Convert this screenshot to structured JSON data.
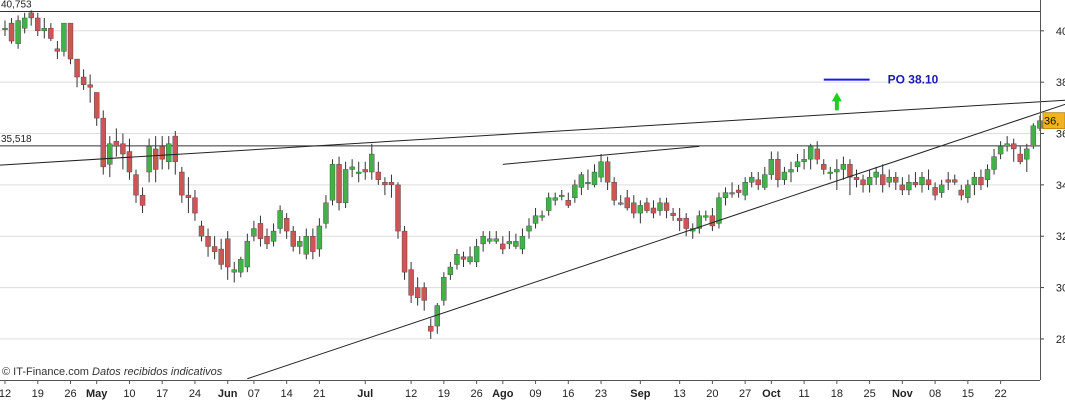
{
  "chart_data": {
    "type": "candlestick",
    "ylim": [
      26.4,
      41.2
    ],
    "y_ticks": [
      28,
      30,
      32,
      34,
      36,
      38,
      40
    ],
    "y_tick_labels": [
      "28",
      "30",
      "32",
      "34",
      "36",
      "38",
      "40"
    ],
    "x_labels": [
      {
        "label": "12",
        "bold": false,
        "i": 0
      },
      {
        "label": "19",
        "bold": false,
        "i": 5
      },
      {
        "label": "26",
        "bold": false,
        "i": 10
      },
      {
        "label": "May",
        "bold": true,
        "i": 14
      },
      {
        "label": "10",
        "bold": false,
        "i": 19
      },
      {
        "label": "17",
        "bold": false,
        "i": 24
      },
      {
        "label": "24",
        "bold": false,
        "i": 29
      },
      {
        "label": "Jun",
        "bold": true,
        "i": 34
      },
      {
        "label": "07",
        "bold": false,
        "i": 38
      },
      {
        "label": "14",
        "bold": false,
        "i": 43
      },
      {
        "label": "21",
        "bold": false,
        "i": 48
      },
      {
        "label": "Jul",
        "bold": true,
        "i": 55
      },
      {
        "label": "12",
        "bold": false,
        "i": 62
      },
      {
        "label": "19",
        "bold": false,
        "i": 67
      },
      {
        "label": "26",
        "bold": false,
        "i": 72
      },
      {
        "label": "Ago",
        "bold": true,
        "i": 76
      },
      {
        "label": "09",
        "bold": false,
        "i": 81
      },
      {
        "label": "16",
        "bold": false,
        "i": 86
      },
      {
        "label": "23",
        "bold": false,
        "i": 91
      },
      {
        "label": "Sep",
        "bold": true,
        "i": 97
      },
      {
        "label": "13",
        "bold": false,
        "i": 103
      },
      {
        "label": "20",
        "bold": false,
        "i": 108
      },
      {
        "label": "27",
        "bold": false,
        "i": 113
      },
      {
        "label": "Oct",
        "bold": true,
        "i": 117
      },
      {
        "label": "11",
        "bold": false,
        "i": 122
      },
      {
        "label": "18",
        "bold": false,
        "i": 127
      },
      {
        "label": "25",
        "bold": false,
        "i": 132
      },
      {
        "label": "Nov",
        "bold": true,
        "i": 137
      },
      {
        "label": "08",
        "bold": false,
        "i": 142
      },
      {
        "label": "15",
        "bold": false,
        "i": 147
      },
      {
        "label": "22",
        "bold": false,
        "i": 152
      }
    ],
    "horizontal_levels": [
      {
        "value": 40.753,
        "label": "40,753"
      },
      {
        "value": 35.518,
        "label": "35,518"
      }
    ],
    "last_price_label": "36,",
    "last_price": 36.5,
    "target": {
      "label": "PO 38.10",
      "value": 38.1,
      "from_i": 125,
      "to_i": 132
    },
    "trendlines": [
      {
        "name": "upper-trendline",
        "from": [
          -2,
          34.75
        ],
        "to": [
          162,
          37.3
        ]
      },
      {
        "name": "lower-trendline",
        "from": [
          37,
          26.45
        ],
        "to": [
          162,
          37.15
        ]
      },
      {
        "name": "short-resistance-line",
        "from": [
          76,
          34.8
        ],
        "to": [
          106,
          35.5
        ]
      }
    ],
    "arrow": {
      "direction": "up",
      "i": 127,
      "base": 36.9,
      "top": 37.6
    },
    "candles": [
      [
        0,
        40.1,
        40.1,
        40.4,
        39.8
      ],
      [
        1,
        40.3,
        39.6,
        40.5,
        39.5
      ],
      [
        2,
        39.5,
        40.4,
        40.6,
        39.3
      ],
      [
        3,
        40.1,
        40.5,
        40.7,
        39.9
      ],
      [
        4,
        40.7,
        40.5,
        40.8,
        40.2
      ],
      [
        5,
        40.5,
        40.0,
        40.7,
        39.8
      ],
      [
        6,
        40.0,
        40.1,
        40.5,
        39.7
      ],
      [
        7,
        40.1,
        39.7,
        40.3,
        39.6
      ],
      [
        8,
        39.3,
        39.2,
        39.6,
        38.9
      ],
      [
        9,
        39.2,
        40.3,
        40.3,
        39.0
      ],
      [
        10,
        40.3,
        38.9,
        40.3,
        38.7
      ],
      [
        11,
        38.9,
        38.2,
        38.9,
        37.8
      ],
      [
        12,
        38.2,
        37.9,
        38.5,
        37.7
      ],
      [
        13,
        37.9,
        37.8,
        38.3,
        37.2
      ],
      [
        14,
        37.6,
        36.6,
        37.6,
        36.3
      ],
      [
        15,
        36.6,
        34.7,
        36.9,
        34.4
      ],
      [
        16,
        34.8,
        35.6,
        35.9,
        34.3
      ],
      [
        17,
        35.7,
        35.5,
        36.2,
        35.1
      ],
      [
        18,
        35.6,
        35.2,
        36.0,
        34.6
      ],
      [
        19,
        35.3,
        34.5,
        35.8,
        34.2
      ],
      [
        20,
        34.4,
        33.6,
        34.6,
        33.3
      ],
      [
        21,
        33.6,
        33.2,
        33.9,
        32.9
      ],
      [
        22,
        34.5,
        35.5,
        35.8,
        34.1
      ],
      [
        23,
        35.4,
        34.6,
        35.9,
        34.1
      ],
      [
        24,
        35.5,
        35.0,
        35.9,
        34.6
      ],
      [
        25,
        34.9,
        35.6,
        35.9,
        34.6
      ],
      [
        26,
        35.9,
        34.9,
        36.1,
        34.4
      ],
      [
        27,
        34.5,
        33.6,
        34.7,
        33.3
      ],
      [
        28,
        33.6,
        33.5,
        34.3,
        32.9
      ],
      [
        29,
        33.5,
        32.9,
        33.8,
        32.6
      ],
      [
        30,
        32.4,
        32.0,
        32.6,
        31.8
      ],
      [
        31,
        32.0,
        31.6,
        32.3,
        31.2
      ],
      [
        32,
        31.6,
        31.4,
        32.0,
        31.1
      ],
      [
        33,
        31.5,
        30.9,
        31.9,
        30.7
      ],
      [
        34,
        31.9,
        30.8,
        32.2,
        30.3
      ],
      [
        35,
        30.6,
        30.7,
        31.0,
        30.2
      ],
      [
        36,
        30.6,
        31.1,
        31.2,
        30.4
      ],
      [
        37,
        30.8,
        31.8,
        32.1,
        30.6
      ],
      [
        38,
        32.0,
        32.3,
        32.6,
        31.8
      ],
      [
        39,
        32.5,
        31.9,
        32.8,
        31.6
      ],
      [
        40,
        32.0,
        31.7,
        32.3,
        31.5
      ],
      [
        41,
        31.8,
        32.2,
        32.5,
        31.6
      ],
      [
        42,
        32.3,
        33.0,
        33.2,
        32.1
      ],
      [
        43,
        32.7,
        32.2,
        32.9,
        31.9
      ],
      [
        44,
        32.2,
        31.6,
        32.4,
        31.4
      ],
      [
        45,
        31.6,
        31.8,
        32.0,
        31.3
      ],
      [
        46,
        31.3,
        32.0,
        32.3,
        31.1
      ],
      [
        47,
        32.0,
        31.4,
        32.3,
        31.1
      ],
      [
        48,
        31.5,
        32.4,
        32.7,
        31.2
      ],
      [
        49,
        32.5,
        33.3,
        33.6,
        32.3
      ],
      [
        50,
        33.4,
        34.8,
        35.0,
        33.2
      ],
      [
        51,
        34.8,
        33.3,
        35.1,
        33.0
      ],
      [
        52,
        33.3,
        34.6,
        34.9,
        33.1
      ],
      [
        53,
        34.6,
        34.7,
        35.0,
        34.3
      ],
      [
        54,
        34.5,
        34.5,
        34.9,
        34.1
      ],
      [
        55,
        34.6,
        34.5,
        34.9,
        34.2
      ],
      [
        56,
        34.5,
        35.2,
        35.6,
        34.2
      ],
      [
        57,
        34.5,
        34.2,
        34.9,
        34.0
      ],
      [
        58,
        34.1,
        34.0,
        34.3,
        33.6
      ],
      [
        59,
        34.1,
        34.0,
        34.4,
        33.5
      ],
      [
        60,
        34.0,
        32.2,
        34.1,
        31.9
      ],
      [
        61,
        32.2,
        30.6,
        32.4,
        30.3
      ],
      [
        62,
        30.7,
        29.7,
        31.0,
        29.4
      ],
      [
        63,
        30.0,
        29.6,
        30.4,
        29.3
      ],
      [
        64,
        30.0,
        29.5,
        30.2,
        29.1
      ],
      [
        65,
        28.5,
        28.3,
        28.8,
        28.0
      ],
      [
        66,
        28.5,
        29.3,
        29.4,
        28.2
      ],
      [
        67,
        29.5,
        30.4,
        30.6,
        29.3
      ],
      [
        68,
        30.5,
        30.8,
        31.0,
        30.3
      ],
      [
        69,
        30.9,
        31.3,
        31.5,
        30.7
      ],
      [
        70,
        31.2,
        31.1,
        31.4,
        30.8
      ],
      [
        71,
        31.0,
        31.2,
        31.6,
        30.9
      ],
      [
        72,
        31.0,
        31.6,
        31.9,
        30.8
      ],
      [
        73,
        31.7,
        32.0,
        32.2,
        31.4
      ],
      [
        74,
        31.8,
        31.9,
        32.2,
        31.7
      ],
      [
        75,
        31.8,
        31.9,
        32.2,
        31.7
      ],
      [
        76,
        31.7,
        31.5,
        32.0,
        31.3
      ],
      [
        77,
        31.7,
        31.8,
        32.2,
        31.5
      ],
      [
        78,
        31.6,
        31.8,
        32.1,
        31.5
      ],
      [
        79,
        31.5,
        32.0,
        32.3,
        31.3
      ],
      [
        80,
        32.2,
        32.4,
        32.7,
        31.9
      ],
      [
        81,
        32.5,
        32.8,
        33.1,
        32.3
      ],
      [
        82,
        32.8,
        32.8,
        33.0,
        32.6
      ],
      [
        83,
        33.0,
        33.5,
        33.7,
        32.8
      ],
      [
        84,
        33.4,
        33.5,
        33.7,
        33.2
      ],
      [
        85,
        33.6,
        33.6,
        33.8,
        33.4
      ],
      [
        86,
        33.4,
        33.2,
        33.7,
        33.1
      ],
      [
        87,
        33.5,
        34.0,
        34.2,
        33.3
      ],
      [
        88,
        33.9,
        34.4,
        34.5,
        33.6
      ],
      [
        89,
        34.1,
        34.1,
        34.6,
        33.8
      ],
      [
        90,
        34.0,
        34.5,
        34.8,
        33.9
      ],
      [
        91,
        34.3,
        34.9,
        35.2,
        34.1
      ],
      [
        92,
        34.9,
        34.1,
        35.1,
        33.8
      ],
      [
        93,
        34.1,
        33.4,
        34.3,
        33.2
      ],
      [
        94,
        33.3,
        33.3,
        33.6,
        33.2
      ],
      [
        95,
        33.5,
        33.1,
        33.8,
        33.0
      ],
      [
        96,
        33.3,
        32.9,
        33.6,
        32.7
      ],
      [
        97,
        32.9,
        33.2,
        33.4,
        32.5
      ],
      [
        98,
        33.3,
        33.0,
        33.5,
        32.9
      ],
      [
        99,
        33.1,
        32.9,
        33.4,
        32.7
      ],
      [
        100,
        33.0,
        33.3,
        33.5,
        32.8
      ],
      [
        101,
        33.3,
        33.0,
        33.5,
        32.7
      ],
      [
        102,
        32.9,
        32.8,
        33.1,
        32.6
      ],
      [
        103,
        32.7,
        32.6,
        33.1,
        32.2
      ],
      [
        104,
        32.7,
        32.3,
        32.9,
        32.0
      ],
      [
        105,
        32.2,
        32.3,
        32.5,
        31.9
      ],
      [
        106,
        32.3,
        32.8,
        33.0,
        32.1
      ],
      [
        107,
        32.8,
        32.8,
        33.0,
        32.6
      ],
      [
        108,
        32.8,
        32.4,
        33.1,
        32.2
      ],
      [
        109,
        32.5,
        33.5,
        33.7,
        32.3
      ],
      [
        110,
        33.5,
        33.7,
        33.9,
        33.2
      ],
      [
        111,
        33.7,
        33.7,
        34.1,
        33.5
      ],
      [
        112,
        33.8,
        33.7,
        34.0,
        33.5
      ],
      [
        113,
        33.6,
        34.1,
        34.3,
        33.4
      ],
      [
        114,
        34.1,
        34.3,
        34.5,
        33.9
      ],
      [
        115,
        34.2,
        34.0,
        34.5,
        33.8
      ],
      [
        116,
        33.9,
        34.4,
        34.7,
        33.8
      ],
      [
        117,
        34.4,
        35.0,
        35.3,
        34.2
      ],
      [
        118,
        35.0,
        34.2,
        35.3,
        33.9
      ],
      [
        119,
        34.2,
        34.5,
        34.7,
        34.0
      ],
      [
        120,
        34.5,
        34.6,
        34.9,
        34.1
      ],
      [
        121,
        34.7,
        34.9,
        35.2,
        34.5
      ],
      [
        122,
        34.9,
        35.0,
        35.4,
        34.6
      ],
      [
        123,
        35.0,
        35.5,
        35.6,
        34.6
      ],
      [
        124,
        35.4,
        35.0,
        35.7,
        34.8
      ],
      [
        125,
        34.8,
        34.6,
        35.0,
        34.4
      ],
      [
        126,
        34.5,
        34.5,
        34.7,
        34.2
      ],
      [
        127,
        34.5,
        34.6,
        35.0,
        33.8
      ],
      [
        128,
        34.6,
        34.8,
        35.1,
        34.2
      ],
      [
        129,
        34.8,
        34.3,
        35.0,
        33.6
      ],
      [
        130,
        34.3,
        34.2,
        34.6,
        33.9
      ],
      [
        131,
        34.2,
        34.0,
        34.4,
        33.7
      ],
      [
        132,
        34.0,
        34.3,
        34.6,
        33.7
      ],
      [
        133,
        34.3,
        34.5,
        34.7,
        34.0
      ],
      [
        134,
        34.4,
        34.0,
        34.8,
        33.7
      ],
      [
        135,
        34.1,
        34.3,
        34.6,
        33.9
      ],
      [
        136,
        34.3,
        34.1,
        34.5,
        33.8
      ],
      [
        137,
        34.0,
        33.8,
        34.3,
        33.6
      ],
      [
        138,
        33.8,
        34.1,
        34.4,
        33.6
      ],
      [
        139,
        34.1,
        34.0,
        34.5,
        33.9
      ],
      [
        140,
        34.0,
        34.3,
        34.5,
        33.7
      ],
      [
        141,
        34.2,
        34.0,
        34.6,
        33.8
      ],
      [
        142,
        33.9,
        33.6,
        34.1,
        33.4
      ],
      [
        143,
        33.7,
        34.0,
        34.2,
        33.5
      ],
      [
        144,
        34.2,
        34.1,
        34.5,
        33.8
      ],
      [
        145,
        34.2,
        34.1,
        34.4,
        34.0
      ],
      [
        146,
        33.8,
        33.6,
        34.0,
        33.4
      ],
      [
        147,
        33.5,
        34.0,
        34.2,
        33.3
      ],
      [
        148,
        34.0,
        34.3,
        34.5,
        33.6
      ],
      [
        149,
        34.3,
        34.0,
        34.6,
        33.8
      ],
      [
        150,
        34.2,
        34.6,
        34.8,
        33.9
      ],
      [
        151,
        34.6,
        35.1,
        35.4,
        34.4
      ],
      [
        152,
        35.2,
        35.5,
        35.7,
        35.0
      ],
      [
        153,
        35.5,
        35.6,
        35.9,
        35.3
      ],
      [
        154,
        35.6,
        35.4,
        35.8,
        34.9
      ],
      [
        155,
        35.2,
        34.9,
        35.5,
        34.8
      ],
      [
        156,
        35.0,
        35.4,
        35.6,
        34.5
      ],
      [
        157,
        35.5,
        36.3,
        36.4,
        35.4
      ],
      [
        158,
        36.2,
        36.5,
        36.7,
        36.1
      ]
    ]
  },
  "credit": {
    "source": "IT-Finance.com",
    "note": "Datos recibidos indicativos"
  },
  "colors": {
    "up_candle": "#44b04a",
    "down_candle": "#cc5555",
    "wick": "#333333",
    "grid": "#dddddd",
    "target_line": "#1a1ae6",
    "target_text": "#1a1ab0",
    "arrow": "#22cc22",
    "last_price_bg": "#f2b320"
  }
}
